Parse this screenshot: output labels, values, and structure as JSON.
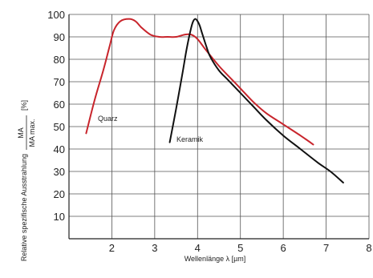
{
  "chart_data": {
    "type": "line",
    "xlabel": "Wellenlänge λ [µm]",
    "ylabel": {
      "prefix": "Relative spezifische Ausstrahlung",
      "fraction_numerator": "MA",
      "fraction_denominator": "MA max.",
      "unit": "[%]"
    },
    "xlim": [
      1,
      8
    ],
    "ylim": [
      0,
      100
    ],
    "x_ticks": [
      2,
      3,
      4,
      5,
      6,
      7,
      8
    ],
    "y_ticks": [
      10,
      20,
      30,
      40,
      50,
      60,
      70,
      80,
      90,
      100
    ],
    "grid": true,
    "legend": "none",
    "series": [
      {
        "name": "Quarz",
        "color": "#c8252c",
        "x": [
          1.4,
          1.6,
          1.8,
          1.95,
          2.05,
          2.2,
          2.4,
          2.55,
          2.7,
          2.9,
          3.1,
          3.3,
          3.5,
          3.7,
          3.85,
          4.0,
          4.2,
          4.5,
          4.8,
          5.0,
          5.3,
          5.6,
          6.0,
          6.4,
          6.7
        ],
        "values": [
          47,
          62,
          75,
          86,
          93,
          97,
          98,
          97,
          94,
          91,
          90,
          90,
          90,
          91,
          91,
          89,
          84,
          77,
          71,
          67,
          61,
          56,
          51,
          46,
          42
        ]
      },
      {
        "name": "Keramik",
        "color": "#111111",
        "x": [
          3.35,
          3.5,
          3.65,
          3.75,
          3.85,
          3.9,
          3.95,
          4.0,
          4.05,
          4.1,
          4.2,
          4.3,
          4.5,
          4.7,
          5.0,
          5.3,
          5.6,
          6.0,
          6.4,
          6.8,
          7.1,
          7.4
        ],
        "values": [
          43,
          58,
          74,
          85,
          94,
          97,
          98,
          97,
          95,
          92,
          86,
          81,
          75,
          71,
          65,
          59,
          53,
          46,
          40,
          34,
          30,
          25
        ]
      }
    ]
  }
}
